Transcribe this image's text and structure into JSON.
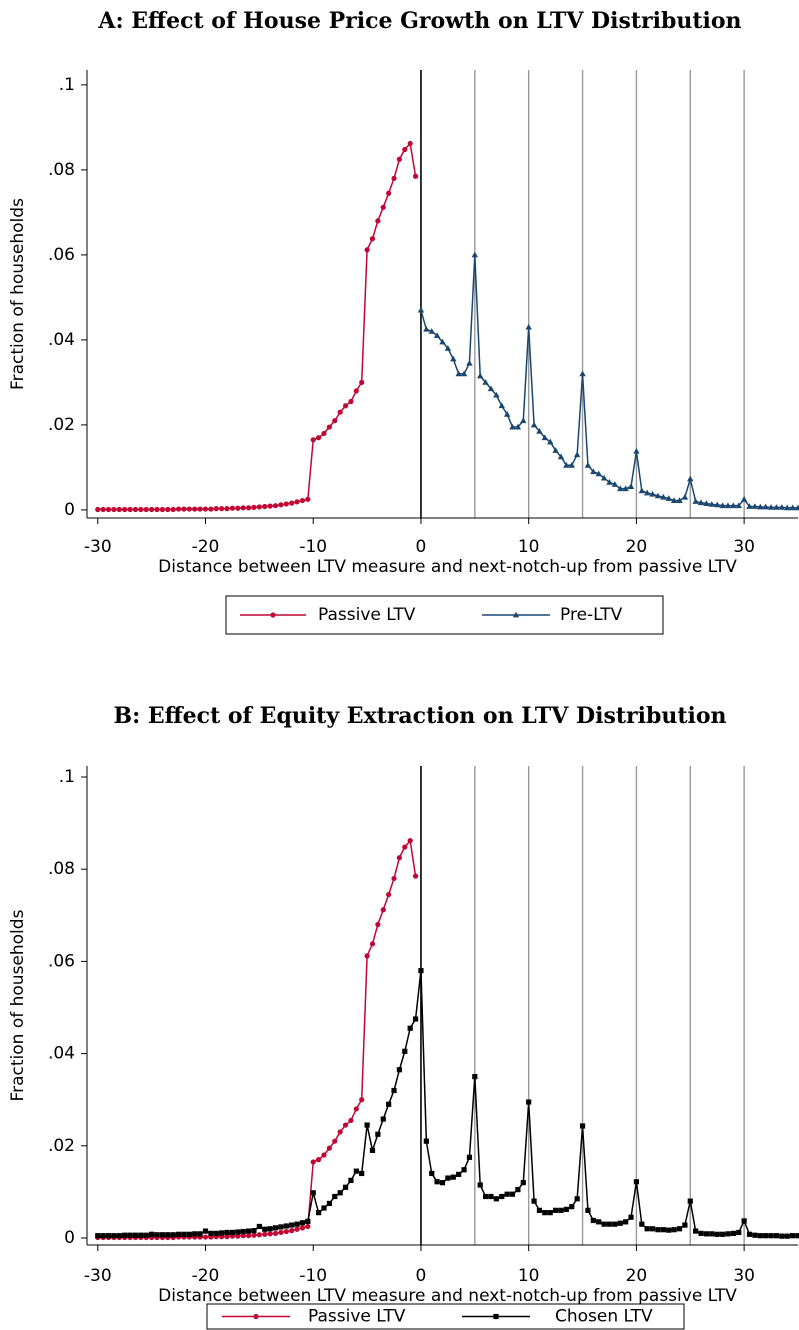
{
  "chart_data": [
    {
      "type": "line",
      "title": "A: Effect of House Price Growth on LTV Distribution",
      "x_label": "Distance between LTV measure and next-notch-up from passive LTV",
      "y_label": "Fraction of households",
      "xlim": [
        -31,
        35
      ],
      "ylim": [
        -0.0019,
        0.1035
      ],
      "xticks": [
        -30,
        -20,
        -10,
        0,
        10,
        20,
        30
      ],
      "yticks": [
        0,
        {
          "value": 0.02,
          "label": ".02"
        },
        {
          "value": 0.04,
          "label": ".04"
        },
        {
          "value": 0.06,
          "label": ".06"
        },
        {
          "value": 0.08,
          "label": ".08"
        },
        {
          "value": 0.1,
          "label": ".1"
        }
      ],
      "xlines": [
        0,
        5,
        10,
        15,
        20,
        25,
        30
      ],
      "series": [
        {
          "name": "Passive LTV",
          "color": "#c10534",
          "marker": "circle",
          "x": [
            -30,
            -29.5,
            -29,
            -28.5,
            -28,
            -27.5,
            -27,
            -26.5,
            -26,
            -25.5,
            -25,
            -24.5,
            -24,
            -23.5,
            -23,
            -22.5,
            -22,
            -21.5,
            -21,
            -20.5,
            -20,
            -19.5,
            -19,
            -18.5,
            -18,
            -17.5,
            -17,
            -16.5,
            -16,
            -15.5,
            -15,
            -14.5,
            -14,
            -13.5,
            -13,
            -12.5,
            -12,
            -11.5,
            -11,
            -10.5,
            -10,
            -9.5,
            -9,
            -8.5,
            -8,
            -7.5,
            -7,
            -6.5,
            -6,
            -5.5,
            -5,
            -4.5,
            -4,
            -3.5,
            -3,
            -2.5,
            -2,
            -1.5,
            -1,
            -0.5
          ],
          "values": [
            0.0001,
            0.0001,
            0.0001,
            0.0001,
            0.0001,
            0.0001,
            0.0001,
            0.0001,
            0.0001,
            0.0001,
            0.0001,
            0.0001,
            0.0001,
            0.0001,
            0.0001,
            0.0002,
            0.0002,
            0.0002,
            0.0002,
            0.0002,
            0.0002,
            0.0002,
            0.0003,
            0.0003,
            0.0003,
            0.0004,
            0.0004,
            0.0005,
            0.0005,
            0.0006,
            0.0007,
            0.0008,
            0.0009,
            0.001,
            0.0012,
            0.0014,
            0.0016,
            0.0019,
            0.0022,
            0.0025,
            0.0165,
            0.017,
            0.018,
            0.0195,
            0.021,
            0.023,
            0.0245,
            0.0255,
            0.028,
            0.03,
            0.0612,
            0.0638,
            0.068,
            0.0712,
            0.0745,
            0.078,
            0.0825,
            0.0848,
            0.0862,
            0.0785
          ]
        },
        {
          "name": "Pre-LTV",
          "color": "#1a476f",
          "marker": "triangle",
          "x": [
            0,
            0.5,
            1,
            1.5,
            2,
            2.5,
            3,
            3.5,
            4,
            4.5,
            5,
            5.5,
            6,
            6.5,
            7,
            7.5,
            8,
            8.5,
            9,
            9.5,
            10,
            10.5,
            11,
            11.5,
            12,
            12.5,
            13,
            13.5,
            14,
            14.5,
            15,
            15.5,
            16,
            16.5,
            17,
            17.5,
            18,
            18.5,
            19,
            19.5,
            20,
            20.5,
            21,
            21.5,
            22,
            22.5,
            23,
            23.5,
            24,
            24.5,
            25,
            25.5,
            26,
            26.5,
            27,
            27.5,
            28,
            28.5,
            29,
            29.5,
            30,
            30.5,
            31,
            31.5,
            32,
            32.5,
            33,
            33.5,
            34,
            34.5,
            35
          ],
          "values": [
            0.047,
            0.0425,
            0.042,
            0.041,
            0.0395,
            0.038,
            0.0355,
            0.032,
            0.032,
            0.0345,
            0.06,
            0.0315,
            0.03,
            0.0285,
            0.027,
            0.0245,
            0.0225,
            0.0195,
            0.0195,
            0.021,
            0.043,
            0.02,
            0.0185,
            0.017,
            0.016,
            0.014,
            0.0125,
            0.0105,
            0.0105,
            0.013,
            0.032,
            0.0105,
            0.009,
            0.0085,
            0.0075,
            0.0065,
            0.006,
            0.005,
            0.005,
            0.0055,
            0.0138,
            0.0045,
            0.004,
            0.0037,
            0.0033,
            0.003,
            0.0027,
            0.0022,
            0.0022,
            0.003,
            0.0073,
            0.002,
            0.0017,
            0.0015,
            0.0013,
            0.0012,
            0.001,
            0.001,
            0.001,
            0.001,
            0.0025,
            0.0008,
            0.0008,
            0.0007,
            0.0007,
            0.0006,
            0.0006,
            0.0006,
            0.0005,
            0.0005,
            0.0005
          ]
        }
      ]
    },
    {
      "type": "line",
      "title": "B: Effect of Equity Extraction on LTV Distribution",
      "x_label": "Distance between LTV measure and next-notch-up from passive LTV",
      "y_label": "Fraction of households",
      "xlim": [
        -31,
        35
      ],
      "ylim": [
        -0.00152,
        0.10239
      ],
      "xticks": [
        -30,
        -20,
        -10,
        0,
        10,
        20,
        30
      ],
      "yticks": [
        0,
        {
          "value": 0.02,
          "label": ".02"
        },
        {
          "value": 0.04,
          "label": ".04"
        },
        {
          "value": 0.06,
          "label": ".06"
        },
        {
          "value": 0.08,
          "label": ".08"
        },
        {
          "value": 0.1,
          "label": ".1"
        }
      ],
      "xlines": [
        0,
        5,
        10,
        15,
        20,
        25,
        30
      ],
      "series": [
        {
          "name": "Passive LTV",
          "color": "#c10534",
          "marker": "circle",
          "x": [
            -30,
            -29.5,
            -29,
            -28.5,
            -28,
            -27.5,
            -27,
            -26.5,
            -26,
            -25.5,
            -25,
            -24.5,
            -24,
            -23.5,
            -23,
            -22.5,
            -22,
            -21.5,
            -21,
            -20.5,
            -20,
            -19.5,
            -19,
            -18.5,
            -18,
            -17.5,
            -17,
            -16.5,
            -16,
            -15.5,
            -15,
            -14.5,
            -14,
            -13.5,
            -13,
            -12.5,
            -12,
            -11.5,
            -11,
            -10.5,
            -10,
            -9.5,
            -9,
            -8.5,
            -8,
            -7.5,
            -7,
            -6.5,
            -6,
            -5.5,
            -5,
            -4.5,
            -4,
            -3.5,
            -3,
            -2.5,
            -2,
            -1.5,
            -1,
            -0.5
          ],
          "values": [
            0.0001,
            0.0001,
            0.0001,
            0.0001,
            0.0001,
            0.0001,
            0.0001,
            0.0001,
            0.0001,
            0.0001,
            0.0001,
            0.0001,
            0.0001,
            0.0001,
            0.0001,
            0.0002,
            0.0002,
            0.0002,
            0.0002,
            0.0002,
            0.0002,
            0.0002,
            0.0003,
            0.0003,
            0.0003,
            0.0004,
            0.0004,
            0.0005,
            0.0005,
            0.0006,
            0.0007,
            0.0008,
            0.0009,
            0.001,
            0.0012,
            0.0014,
            0.0016,
            0.0019,
            0.0022,
            0.0025,
            0.0165,
            0.017,
            0.018,
            0.0195,
            0.021,
            0.023,
            0.0245,
            0.0255,
            0.028,
            0.03,
            0.0612,
            0.0638,
            0.068,
            0.0712,
            0.0745,
            0.078,
            0.0825,
            0.0848,
            0.0862,
            0.0785
          ]
        },
        {
          "name": "Chosen LTV",
          "color": "#000000",
          "marker": "square",
          "x": [
            -30,
            -29.5,
            -29,
            -28.5,
            -28,
            -27.5,
            -27,
            -26.5,
            -26,
            -25.5,
            -25,
            -24.5,
            -24,
            -23.5,
            -23,
            -22.5,
            -22,
            -21.5,
            -21,
            -20.5,
            -20,
            -19.5,
            -19,
            -18.5,
            -18,
            -17.5,
            -17,
            -16.5,
            -16,
            -15.5,
            -15,
            -14.5,
            -14,
            -13.5,
            -13,
            -12.5,
            -12,
            -11.5,
            -11,
            -10.5,
            -10,
            -9.5,
            -9,
            -8.5,
            -8,
            -7.5,
            -7,
            -6.5,
            -6,
            -5.5,
            -5,
            -4.5,
            -4,
            -3.5,
            -3,
            -2.5,
            -2,
            -1.5,
            -1,
            -0.5,
            0,
            0.5,
            1,
            1.5,
            2,
            2.5,
            3,
            3.5,
            4,
            4.5,
            5,
            5.5,
            6,
            6.5,
            7,
            7.5,
            8,
            8.5,
            9,
            9.5,
            10,
            10.5,
            11,
            11.5,
            12,
            12.5,
            13,
            13.5,
            14,
            14.5,
            15,
            15.5,
            16,
            16.5,
            17,
            17.5,
            18,
            18.5,
            19,
            19.5,
            20,
            20.5,
            21,
            21.5,
            22,
            22.5,
            23,
            23.5,
            24,
            24.5,
            25,
            25.5,
            26,
            26.5,
            27,
            27.5,
            28,
            28.5,
            29,
            29.5,
            30,
            30.5,
            31,
            31.5,
            32,
            32.5,
            33,
            33.5,
            34,
            34.5,
            35
          ],
          "values": [
            0.0005,
            0.0005,
            0.0005,
            0.0005,
            0.0005,
            0.0006,
            0.0006,
            0.0006,
            0.0006,
            0.0006,
            0.0008,
            0.0007,
            0.0007,
            0.0007,
            0.0007,
            0.0008,
            0.0008,
            0.0008,
            0.0009,
            0.0009,
            0.0015,
            0.001,
            0.001,
            0.0011,
            0.0012,
            0.0012,
            0.0013,
            0.0014,
            0.0015,
            0.0016,
            0.0025,
            0.0019,
            0.002,
            0.0022,
            0.0024,
            0.0026,
            0.0028,
            0.003,
            0.0033,
            0.0036,
            0.0098,
            0.0055,
            0.0065,
            0.0075,
            0.009,
            0.0098,
            0.011,
            0.0125,
            0.0145,
            0.014,
            0.0245,
            0.019,
            0.0225,
            0.0258,
            0.029,
            0.032,
            0.0365,
            0.0405,
            0.0455,
            0.0475,
            0.058,
            0.021,
            0.014,
            0.0122,
            0.012,
            0.013,
            0.0132,
            0.0138,
            0.0148,
            0.0175,
            0.035,
            0.0115,
            0.009,
            0.009,
            0.0085,
            0.009,
            0.0095,
            0.0095,
            0.0105,
            0.012,
            0.0295,
            0.008,
            0.006,
            0.0055,
            0.0055,
            0.006,
            0.006,
            0.0062,
            0.0068,
            0.0085,
            0.0243,
            0.006,
            0.0038,
            0.0035,
            0.003,
            0.003,
            0.003,
            0.0032,
            0.0035,
            0.0045,
            0.0122,
            0.003,
            0.002,
            0.002,
            0.0018,
            0.0018,
            0.0017,
            0.0018,
            0.002,
            0.0028,
            0.008,
            0.0015,
            0.001,
            0.0009,
            0.0009,
            0.0008,
            0.0008,
            0.0009,
            0.001,
            0.0012,
            0.0037,
            0.0008,
            0.0006,
            0.0005,
            0.0005,
            0.0005,
            0.0005,
            0.0004,
            0.0004,
            0.0005,
            0.0005
          ]
        }
      ]
    }
  ]
}
